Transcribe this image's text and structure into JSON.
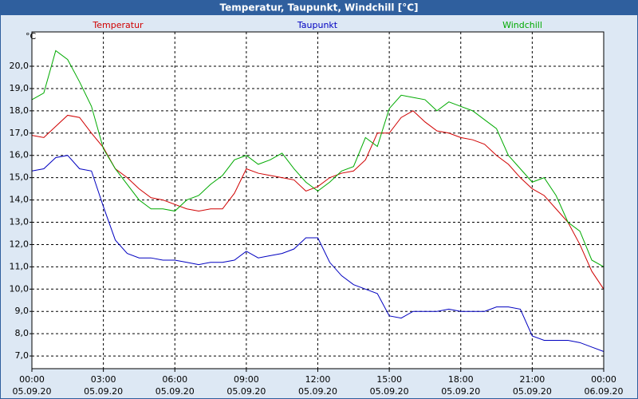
{
  "chart_data": {
    "type": "line",
    "title": "Temperatur, Taupunkt, Windchill [°C]",
    "y_unit": "°C",
    "x": [
      0,
      0.5,
      1,
      1.5,
      2,
      2.5,
      3,
      3.5,
      4,
      4.5,
      5,
      5.5,
      6,
      6.5,
      7,
      7.5,
      8,
      8.5,
      9,
      9.5,
      10,
      10.5,
      11,
      11.5,
      12,
      12.5,
      13,
      13.5,
      14,
      14.5,
      15,
      15.5,
      16,
      16.5,
      17,
      17.5,
      18,
      18.5,
      19,
      19.5,
      20,
      20.5,
      21,
      21.5,
      22,
      22.5,
      23,
      23.5,
      24
    ],
    "series": [
      {
        "name": "Temperatur",
        "color": "#d00000",
        "values": [
          16.9,
          16.8,
          17.3,
          17.8,
          17.7,
          17.0,
          16.35,
          15.4,
          15.0,
          14.5,
          14.1,
          14.0,
          13.8,
          13.6,
          13.5,
          13.6,
          13.6,
          14.3,
          15.4,
          15.2,
          15.1,
          15.0,
          14.9,
          14.4,
          14.6,
          15.0,
          15.2,
          15.3,
          15.8,
          17.0,
          17.0,
          17.7,
          18.0,
          17.5,
          17.1,
          17.0,
          16.8,
          16.7,
          16.5,
          16.0,
          15.6,
          15.0,
          14.5,
          14.2,
          13.6,
          13.0,
          12.0,
          10.8,
          10.0
        ]
      },
      {
        "name": "Taupunkt",
        "color": "#0000c0",
        "values": [
          15.3,
          15.4,
          15.9,
          16.0,
          15.4,
          15.3,
          13.7,
          12.2,
          11.6,
          11.4,
          11.4,
          11.3,
          11.3,
          11.2,
          11.1,
          11.2,
          11.2,
          11.3,
          11.7,
          11.4,
          11.5,
          11.6,
          11.8,
          12.3,
          12.3,
          11.2,
          10.6,
          10.2,
          10.0,
          9.8,
          8.8,
          8.7,
          9.0,
          9.0,
          9.0,
          9.1,
          9.0,
          9.0,
          9.0,
          9.2,
          9.2,
          9.1,
          7.9,
          7.7,
          7.7,
          7.7,
          7.6,
          7.4,
          7.2
        ]
      },
      {
        "name": "Windchill",
        "color": "#00aa00",
        "values": [
          18.5,
          18.8,
          20.7,
          20.3,
          19.3,
          18.2,
          16.3,
          15.4,
          14.7,
          14.0,
          13.6,
          13.6,
          13.5,
          14.0,
          14.2,
          14.7,
          15.1,
          15.8,
          16.0,
          15.6,
          15.8,
          16.1,
          15.4,
          14.8,
          14.4,
          14.8,
          15.3,
          15.5,
          16.8,
          16.4,
          18.1,
          18.7,
          18.6,
          18.5,
          18.0,
          18.4,
          18.2,
          18.0,
          17.6,
          17.2,
          16.0,
          15.4,
          14.8,
          15.0,
          14.2,
          13.0,
          12.6,
          11.3,
          11.0
        ]
      }
    ],
    "xlim": [
      0,
      24
    ],
    "xticks": [
      {
        "value": 0,
        "label": "00:00",
        "date": "05.09.20"
      },
      {
        "value": 3,
        "label": "03:00",
        "date": "05.09.20"
      },
      {
        "value": 6,
        "label": "06:00",
        "date": "05.09.20"
      },
      {
        "value": 9,
        "label": "09:00",
        "date": "05.09.20"
      },
      {
        "value": 12,
        "label": "12:00",
        "date": "05.09.20"
      },
      {
        "value": 15,
        "label": "15:00",
        "date": "05.09.20"
      },
      {
        "value": 18,
        "label": "18:00",
        "date": "05.09.20"
      },
      {
        "value": 21,
        "label": "21:00",
        "date": "05.09.20"
      },
      {
        "value": 24,
        "label": "00:00",
        "date": "06.09.20"
      }
    ],
    "ylim": [
      6.43,
      21.54
    ],
    "yticks": [
      {
        "value": 7,
        "label": "7,0"
      },
      {
        "value": 8,
        "label": "8,0"
      },
      {
        "value": 9,
        "label": "9,0"
      },
      {
        "value": 10,
        "label": "10,0"
      },
      {
        "value": 11,
        "label": "11,0"
      },
      {
        "value": 12,
        "label": "12,0"
      },
      {
        "value": 13,
        "label": "13,0"
      },
      {
        "value": 14,
        "label": "14,0"
      },
      {
        "value": 15,
        "label": "15,0"
      },
      {
        "value": 16,
        "label": "16,0"
      },
      {
        "value": 17,
        "label": "17,0"
      },
      {
        "value": 18,
        "label": "18,0"
      },
      {
        "value": 19,
        "label": "19,0"
      },
      {
        "value": 20,
        "label": "20,0"
      }
    ],
    "grid": true
  }
}
